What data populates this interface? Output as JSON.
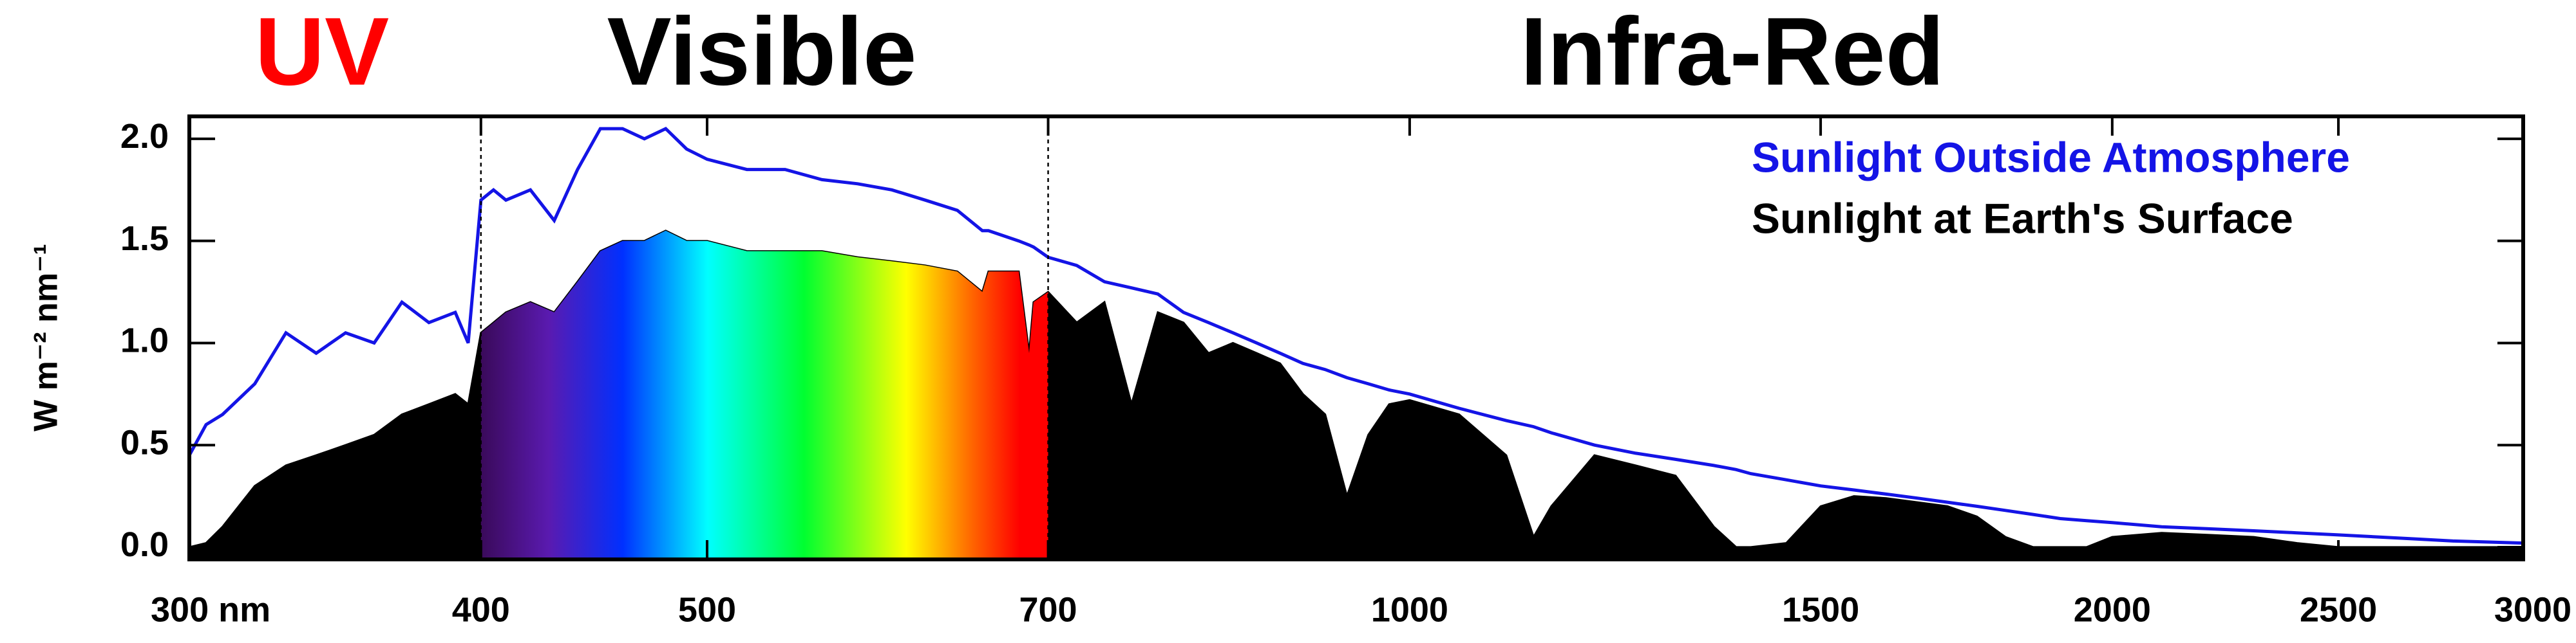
{
  "chart_data": {
    "type": "line",
    "xscale": "log",
    "regions": [
      {
        "label": "UV",
        "color": "#ff0000"
      },
      {
        "label": "Visible",
        "color": "#000000"
      },
      {
        "label": "Infra-Red",
        "color": "#000000"
      }
    ],
    "region_bounds": [
      400,
      700
    ],
    "y_label": "W m⁻² nm⁻¹",
    "legend": "upper right",
    "x": [
      300,
      305,
      310,
      320,
      330,
      340,
      350,
      360,
      370,
      380,
      390,
      395,
      400,
      405,
      410,
      420,
      430,
      440,
      450,
      460,
      470,
      480,
      490,
      500,
      520,
      540,
      560,
      580,
      600,
      620,
      640,
      656,
      660,
      680,
      687,
      690,
      700,
      720,
      740,
      760,
      780,
      800,
      820,
      840,
      860,
      880,
      900,
      920,
      940,
      960,
      980,
      1000,
      1050,
      1100,
      1130,
      1150,
      1200,
      1250,
      1300,
      1350,
      1380,
      1400,
      1450,
      1500,
      1550,
      1600,
      1650,
      1700,
      1750,
      1800,
      1850,
      1900,
      1950,
      2000,
      2100,
      2200,
      2300,
      2400,
      2500,
      2600,
      2700,
      2800,
      2900,
      3000
    ],
    "series": [
      {
        "name": "Sunlight Outside Atmosphere",
        "color": "#1414e6",
        "style": "line",
        "values": [
          0.45,
          0.6,
          0.65,
          0.8,
          1.05,
          0.95,
          1.05,
          1.0,
          1.2,
          1.1,
          1.15,
          1.0,
          1.7,
          1.75,
          1.7,
          1.75,
          1.6,
          1.85,
          2.05,
          2.05,
          2.0,
          2.05,
          1.95,
          1.9,
          1.85,
          1.85,
          1.8,
          1.78,
          1.75,
          1.7,
          1.65,
          1.55,
          1.55,
          1.5,
          1.48,
          1.47,
          1.42,
          1.38,
          1.3,
          1.27,
          1.24,
          1.15,
          1.1,
          1.05,
          1.0,
          0.95,
          0.9,
          0.87,
          0.83,
          0.8,
          0.77,
          0.75,
          0.68,
          0.62,
          0.59,
          0.56,
          0.5,
          0.46,
          0.43,
          0.4,
          0.38,
          0.36,
          0.33,
          0.3,
          0.28,
          0.26,
          0.24,
          0.22,
          0.2,
          0.18,
          0.16,
          0.14,
          0.13,
          0.12,
          0.1,
          0.09,
          0.08,
          0.07,
          0.06,
          0.05,
          0.04,
          0.03,
          0.025,
          0.02
        ]
      },
      {
        "name": "Sunlight at Earth's Surface",
        "color": "#000000",
        "style": "area",
        "values": [
          0,
          0.02,
          0.1,
          0.3,
          0.4,
          0.45,
          0.5,
          0.55,
          0.65,
          0.7,
          0.75,
          0.7,
          1.05,
          1.1,
          1.15,
          1.2,
          1.15,
          1.3,
          1.45,
          1.5,
          1.5,
          1.55,
          1.5,
          1.5,
          1.45,
          1.45,
          1.45,
          1.42,
          1.4,
          1.38,
          1.35,
          1.25,
          1.35,
          1.35,
          0.95,
          1.2,
          1.25,
          1.1,
          1.2,
          0.7,
          1.15,
          1.1,
          0.95,
          1.0,
          0.95,
          0.9,
          0.75,
          0.65,
          0.25,
          0.55,
          0.7,
          0.72,
          0.65,
          0.45,
          0.05,
          0.2,
          0.45,
          0.4,
          0.35,
          0.1,
          0,
          0,
          0.02,
          0.2,
          0.25,
          0.24,
          0.22,
          0.2,
          0.15,
          0.05,
          0,
          0,
          0,
          0.05,
          0.07,
          0.06,
          0.05,
          0.02,
          0,
          0,
          0,
          0,
          0,
          0
        ]
      }
    ],
    "xlim": [
      300,
      3000
    ],
    "ylim": [
      -0.06,
      2.11
    ],
    "xticks": [
      {
        "value": 300,
        "label": "300 nm"
      },
      400,
      500,
      700,
      1000,
      1500,
      2000,
      2500,
      3000
    ],
    "yticks": [
      {
        "value": 0,
        "label": "0.0"
      },
      0.5,
      {
        "value": 1,
        "label": "1.0"
      },
      1.5,
      {
        "value": 2,
        "label": "2.0"
      }
    ]
  }
}
